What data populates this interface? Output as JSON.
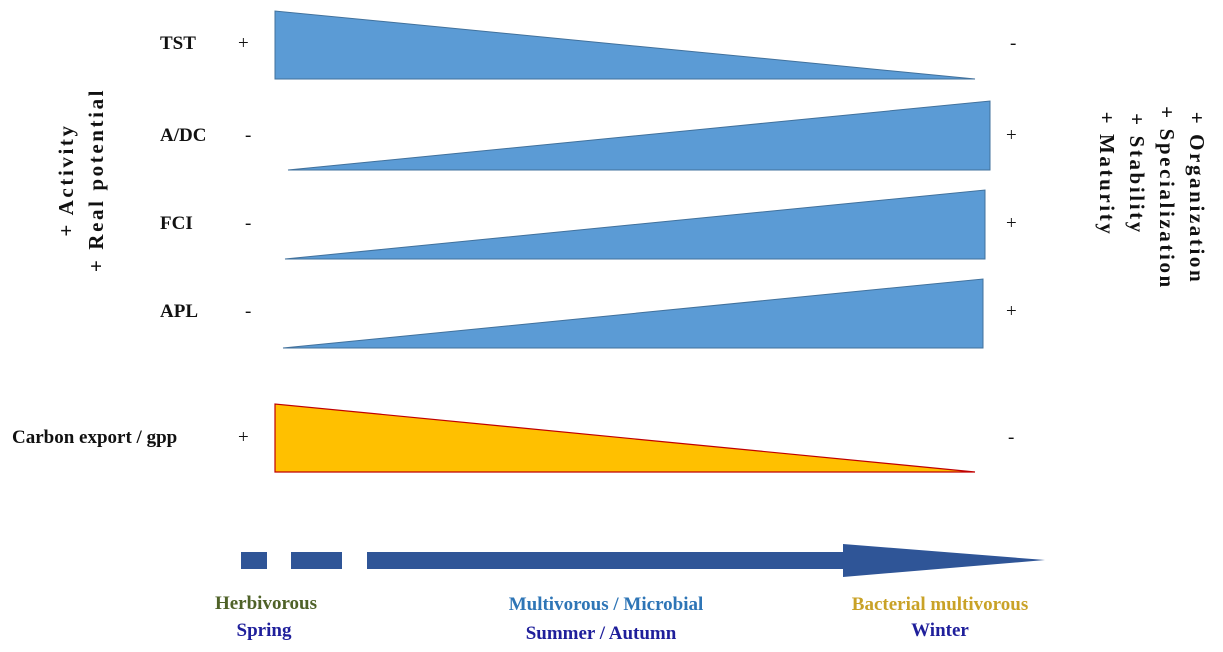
{
  "colors": {
    "wedge_fill": "#5b9bd5",
    "wedge_stroke": "#41719c",
    "carbon_fill": "#ffc000",
    "carbon_stroke": "#c00000",
    "arrow": "#2f5597",
    "herbivorous": "#4f6228",
    "multivorous_microbial": "#2e75b6",
    "bacterial_multivorous": "#c9a227",
    "season": "#1f1f9b"
  },
  "rows": [
    {
      "label": "TST",
      "left_sign": "+",
      "right_sign": "-",
      "direction": "decreasing"
    },
    {
      "label": "A/DC",
      "left_sign": "-",
      "right_sign": "+",
      "direction": "increasing"
    },
    {
      "label": "FCI",
      "left_sign": "-",
      "right_sign": "+",
      "direction": "increasing"
    },
    {
      "label": "APL",
      "left_sign": "-",
      "right_sign": "+",
      "direction": "increasing"
    },
    {
      "label": "Carbon export / gpp",
      "left_sign": "+",
      "right_sign": "-",
      "direction": "decreasing"
    }
  ],
  "left_axis": {
    "line1": "+ Activity",
    "line2": "+ Real potential"
  },
  "right_axis": {
    "line1": "+ Organization",
    "line2": "+ Specialization",
    "line3": "+ Stability",
    "line4": "+ Maturity"
  },
  "phases": [
    {
      "name": "Herbivorous",
      "season": "Spring"
    },
    {
      "name": "Multivorous / Microbial",
      "season": "Summer / Autumn"
    },
    {
      "name": "Bacterial multivorous",
      "season": "Winter"
    }
  ]
}
